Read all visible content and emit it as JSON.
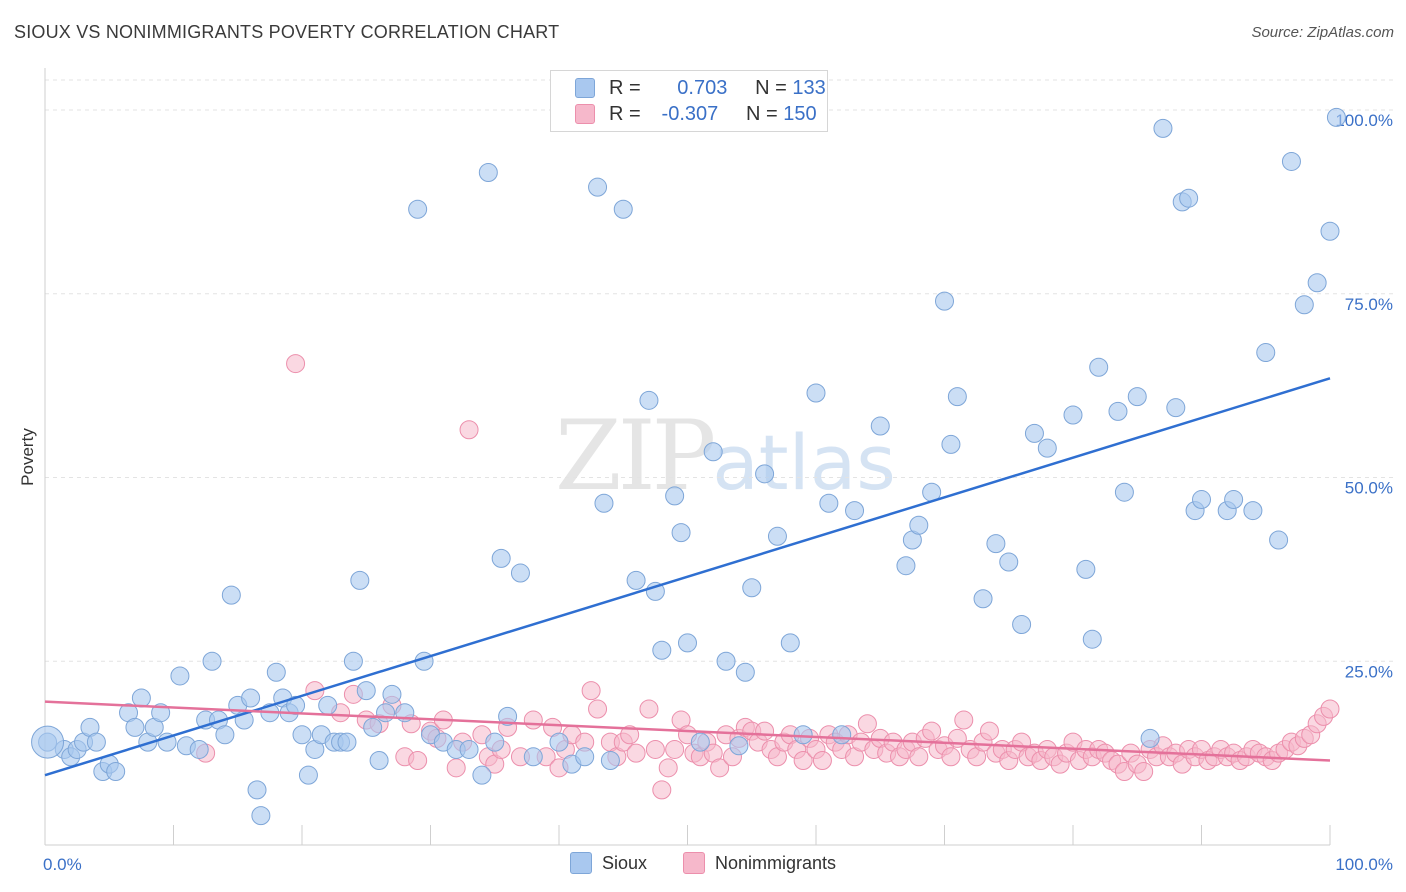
{
  "title": "SIOUX VS NONIMMIGRANTS POVERTY CORRELATION CHART",
  "source": "Source: ZipAtlas.com",
  "watermark": {
    "zip": "ZIP",
    "atlas": "atlas"
  },
  "legend": {
    "r_label": "R =",
    "n_label": "N =",
    "rows": [
      {
        "name": "Sioux",
        "r": "0.703",
        "n": "133",
        "color": "#a9c8ef"
      },
      {
        "name": "Nonimmigrants",
        "r": "-0.307",
        "n": "150",
        "color": "#f6b8cb"
      }
    ]
  },
  "colors": {
    "sioux_fill": "#a9c8ef",
    "sioux_stroke": "#7ea6d8",
    "sioux_line": "#2f6fd1",
    "nonimm_fill": "#f6b8cb",
    "nonimm_stroke": "#ec8fac",
    "nonimm_line": "#e4719a",
    "tick_label": "#3a70c7"
  },
  "chart_data": {
    "type": "scatter",
    "title": "SIOUX VS NONIMMIGRANTS POVERTY CORRELATION CHART",
    "xlabel": "",
    "ylabel": "Poverty",
    "xlim": [
      0,
      100
    ],
    "ylim": [
      0,
      100
    ],
    "x_tick_labels": [
      "0.0%",
      "100.0%"
    ],
    "y_tick_labels": [
      "25.0%",
      "50.0%",
      "75.0%",
      "100.0%"
    ],
    "y_ticks": [
      25,
      50,
      75,
      100
    ],
    "grid": "horizontal dashed",
    "legend_placement": "top-center",
    "series": [
      {
        "name": "Sioux",
        "trend": {
          "x": [
            0,
            100
          ],
          "y": [
            9.5,
            63.5
          ]
        },
        "points": [
          [
            0.2,
            14
          ],
          [
            1.5,
            13
          ],
          [
            2,
            12
          ],
          [
            2.5,
            13
          ],
          [
            3,
            14
          ],
          [
            3.5,
            16
          ],
          [
            4,
            14
          ],
          [
            4.5,
            10
          ],
          [
            5,
            11
          ],
          [
            5.5,
            10
          ],
          [
            6.5,
            18
          ],
          [
            7,
            16
          ],
          [
            7.5,
            20
          ],
          [
            8,
            14
          ],
          [
            8.5,
            16
          ],
          [
            9,
            18
          ],
          [
            9.5,
            14
          ],
          [
            10.5,
            23
          ],
          [
            11,
            13.5
          ],
          [
            12,
            13
          ],
          [
            12.5,
            17
          ],
          [
            13,
            25
          ],
          [
            13.5,
            17
          ],
          [
            14,
            15
          ],
          [
            14.5,
            34
          ],
          [
            15,
            19
          ],
          [
            15.5,
            17
          ],
          [
            16,
            20
          ],
          [
            16.5,
            7.5
          ],
          [
            16.8,
            4
          ],
          [
            17.5,
            18
          ],
          [
            18,
            23.5
          ],
          [
            18.5,
            20
          ],
          [
            19,
            18
          ],
          [
            19.5,
            19
          ],
          [
            20,
            15
          ],
          [
            20.5,
            9.5
          ],
          [
            21,
            13
          ],
          [
            21.5,
            15
          ],
          [
            22,
            19
          ],
          [
            22.5,
            14
          ],
          [
            23,
            14
          ],
          [
            23.5,
            14
          ],
          [
            24,
            25
          ],
          [
            24.5,
            36
          ],
          [
            25,
            21
          ],
          [
            25.5,
            16
          ],
          [
            26,
            11.5
          ],
          [
            26.5,
            18
          ],
          [
            27,
            20.5
          ],
          [
            28,
            18
          ],
          [
            29,
            86.5
          ],
          [
            29.5,
            25
          ],
          [
            30,
            15
          ],
          [
            31,
            14
          ],
          [
            32,
            13
          ],
          [
            33,
            13
          ],
          [
            34,
            9.5
          ],
          [
            34.5,
            91.5
          ],
          [
            35,
            14
          ],
          [
            35.5,
            39
          ],
          [
            36,
            17.5
          ],
          [
            37,
            37
          ],
          [
            38,
            12
          ],
          [
            40,
            14
          ],
          [
            41,
            11
          ],
          [
            42,
            12
          ],
          [
            43,
            89.5
          ],
          [
            43.5,
            46.5
          ],
          [
            44,
            11.5
          ],
          [
            45,
            86.5
          ],
          [
            46,
            36
          ],
          [
            47,
            60.5
          ],
          [
            47.5,
            34.5
          ],
          [
            48,
            26.5
          ],
          [
            49,
            47.5
          ],
          [
            49.5,
            42.5
          ],
          [
            50,
            27.5
          ],
          [
            51,
            14
          ],
          [
            52,
            53.5
          ],
          [
            53,
            25
          ],
          [
            54,
            13.5
          ],
          [
            54.5,
            23.5
          ],
          [
            55,
            35
          ],
          [
            56,
            50.5
          ],
          [
            57,
            42
          ],
          [
            58,
            27.5
          ],
          [
            59,
            15
          ],
          [
            60,
            61.5
          ],
          [
            61,
            46.5
          ],
          [
            62,
            15
          ],
          [
            63,
            45.5
          ],
          [
            65,
            57
          ],
          [
            67,
            38
          ],
          [
            67.5,
            41.5
          ],
          [
            68,
            43.5
          ],
          [
            69,
            48
          ],
          [
            70,
            74
          ],
          [
            70.5,
            54.5
          ],
          [
            71,
            61
          ],
          [
            73,
            33.5
          ],
          [
            74,
            41
          ],
          [
            75,
            38.5
          ],
          [
            76,
            30
          ],
          [
            77,
            56
          ],
          [
            78,
            54
          ],
          [
            80,
            58.5
          ],
          [
            81,
            37.5
          ],
          [
            81.5,
            28
          ],
          [
            82,
            65
          ],
          [
            83.5,
            59
          ],
          [
            84,
            48
          ],
          [
            85,
            61
          ],
          [
            86,
            14.5
          ],
          [
            87,
            97.5
          ],
          [
            88,
            59.5
          ],
          [
            88.5,
            87.5
          ],
          [
            89,
            88
          ],
          [
            89.5,
            45.5
          ],
          [
            90,
            47
          ],
          [
            92,
            45.5
          ],
          [
            92.5,
            47
          ],
          [
            94,
            45.5
          ],
          [
            95,
            67
          ],
          [
            96,
            41.5
          ],
          [
            97,
            93
          ],
          [
            98,
            73.5
          ],
          [
            99,
            76.5
          ],
          [
            100,
            83.5
          ],
          [
            100.5,
            99
          ]
        ]
      },
      {
        "name": "Nonimmigrants",
        "trend": {
          "x": [
            0,
            100
          ],
          "y": [
            19.5,
            11.5
          ]
        },
        "points": [
          [
            12.5,
            12.5
          ],
          [
            19.5,
            65.5
          ],
          [
            21,
            21
          ],
          [
            23,
            18
          ],
          [
            24,
            20.5
          ],
          [
            25,
            17
          ],
          [
            26,
            16.5
          ],
          [
            27,
            19
          ],
          [
            28,
            12
          ],
          [
            28.5,
            16.5
          ],
          [
            29,
            11.5
          ],
          [
            30,
            15.5
          ],
          [
            30.5,
            14.5
          ],
          [
            31,
            17
          ],
          [
            32,
            10.5
          ],
          [
            32.5,
            14
          ],
          [
            33,
            56.5
          ],
          [
            34,
            15
          ],
          [
            34.5,
            12
          ],
          [
            35,
            11
          ],
          [
            35.5,
            13
          ],
          [
            36,
            16
          ],
          [
            37,
            12
          ],
          [
            38,
            17
          ],
          [
            39,
            12
          ],
          [
            39.5,
            16
          ],
          [
            40,
            10.5
          ],
          [
            40.5,
            13
          ],
          [
            41,
            15
          ],
          [
            42,
            14
          ],
          [
            42.5,
            21
          ],
          [
            43,
            18.5
          ],
          [
            44,
            14
          ],
          [
            44.5,
            12
          ],
          [
            45,
            14
          ],
          [
            45.5,
            15
          ],
          [
            46,
            12.5
          ],
          [
            47,
            18.5
          ],
          [
            47.5,
            13
          ],
          [
            48,
            7.5
          ],
          [
            48.5,
            10.5
          ],
          [
            49,
            13
          ],
          [
            49.5,
            17
          ],
          [
            50,
            15
          ],
          [
            50.5,
            12.5
          ],
          [
            51,
            12
          ],
          [
            51.5,
            14
          ],
          [
            52,
            12.5
          ],
          [
            52.5,
            10.5
          ],
          [
            53,
            15
          ],
          [
            53.5,
            12
          ],
          [
            54,
            14.5
          ],
          [
            54.5,
            16
          ],
          [
            55,
            15.5
          ],
          [
            55.5,
            14
          ],
          [
            56,
            15.5
          ],
          [
            56.5,
            13
          ],
          [
            57,
            12
          ],
          [
            57.5,
            14
          ],
          [
            58,
            15
          ],
          [
            58.5,
            13
          ],
          [
            59,
            11.5
          ],
          [
            59.5,
            14.5
          ],
          [
            60,
            13
          ],
          [
            60.5,
            11.5
          ],
          [
            61,
            15
          ],
          [
            61.5,
            14
          ],
          [
            62,
            13
          ],
          [
            62.5,
            15
          ],
          [
            63,
            12
          ],
          [
            63.5,
            14
          ],
          [
            64,
            16.5
          ],
          [
            64.5,
            13
          ],
          [
            65,
            14.5
          ],
          [
            65.5,
            12.5
          ],
          [
            66,
            14
          ],
          [
            66.5,
            12
          ],
          [
            67,
            13
          ],
          [
            67.5,
            14
          ],
          [
            68,
            12
          ],
          [
            68.5,
            14.5
          ],
          [
            69,
            15.5
          ],
          [
            69.5,
            13
          ],
          [
            70,
            13.5
          ],
          [
            70.5,
            12
          ],
          [
            71,
            14.5
          ],
          [
            71.5,
            17
          ],
          [
            72,
            13
          ],
          [
            72.5,
            12
          ],
          [
            73,
            14
          ],
          [
            73.5,
            15.5
          ],
          [
            74,
            12.5
          ],
          [
            74.5,
            13
          ],
          [
            75,
            11.5
          ],
          [
            75.5,
            13
          ],
          [
            76,
            14
          ],
          [
            76.5,
            12
          ],
          [
            77,
            12.5
          ],
          [
            77.5,
            11.5
          ],
          [
            78,
            13
          ],
          [
            78.5,
            12
          ],
          [
            79,
            11
          ],
          [
            79.5,
            12.5
          ],
          [
            80,
            14
          ],
          [
            80.5,
            11.5
          ],
          [
            81,
            13
          ],
          [
            81.5,
            12
          ],
          [
            82,
            13
          ],
          [
            82.5,
            12.5
          ],
          [
            83,
            11.5
          ],
          [
            83.5,
            11
          ],
          [
            84,
            10
          ],
          [
            84.5,
            12.5
          ],
          [
            85,
            11
          ],
          [
            85.5,
            10
          ],
          [
            86,
            13
          ],
          [
            86.5,
            12
          ],
          [
            87,
            13.5
          ],
          [
            87.5,
            12
          ],
          [
            88,
            12.5
          ],
          [
            88.5,
            11
          ],
          [
            89,
            13
          ],
          [
            89.5,
            12
          ],
          [
            90,
            13
          ],
          [
            90.5,
            11.5
          ],
          [
            91,
            12
          ],
          [
            91.5,
            13
          ],
          [
            92,
            12
          ],
          [
            92.5,
            12.5
          ],
          [
            93,
            11.5
          ],
          [
            93.5,
            12
          ],
          [
            94,
            13
          ],
          [
            94.5,
            12.5
          ],
          [
            95,
            12
          ],
          [
            95.5,
            11.5
          ],
          [
            96,
            12.5
          ],
          [
            96.5,
            13
          ],
          [
            97,
            14
          ],
          [
            97.5,
            13.5
          ],
          [
            98,
            14.5
          ],
          [
            98.5,
            15
          ],
          [
            99,
            16.5
          ],
          [
            99.5,
            17.5
          ],
          [
            100,
            18.5
          ]
        ]
      }
    ]
  }
}
